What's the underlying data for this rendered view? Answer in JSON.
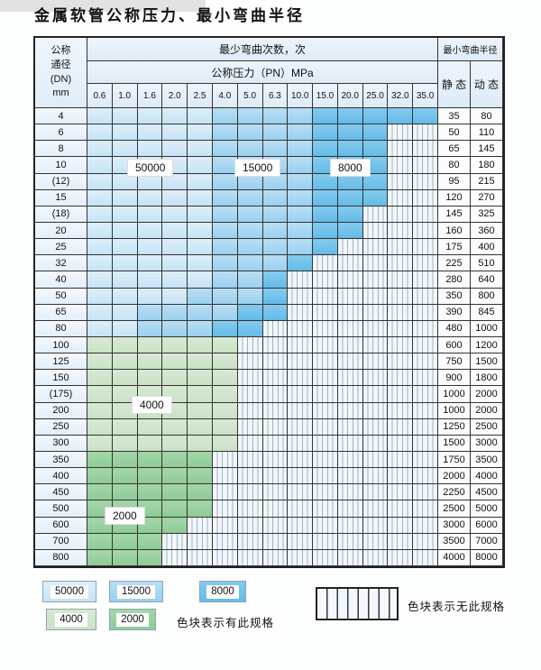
{
  "title": "金属软管公称压力、最小弯曲半径",
  "header": {
    "dn_lines": [
      "公称",
      "通径",
      "(DN)",
      "mm"
    ],
    "cycles_label": "最少弯曲次数，次",
    "pn_label": "公称压力（PN）MPa",
    "pressures": [
      "0.6",
      "1.0",
      "1.6",
      "2.0",
      "2.5",
      "4.0",
      "5.0",
      "6.3",
      "10.0",
      "15.0",
      "20.0",
      "25.0",
      "32.0",
      "35.0"
    ],
    "radius_label": "最小弯曲半径",
    "static_label": "静 态",
    "dynamic_label": "动 态"
  },
  "zone_codes": {
    "b1": "50000",
    "b2": "15000",
    "b3": "8000",
    "g1": "4000",
    "g2": "2000",
    "n": "无此规格"
  },
  "zone_labels": {
    "z50000": "50000",
    "z15000": "15000",
    "z8000": "8000",
    "z4000": "4000",
    "z2000": "2000"
  },
  "rows": [
    {
      "dn": "4",
      "spec": [
        "b1",
        "b1",
        "b1",
        "b1",
        "b1",
        "b2",
        "b2",
        "b2",
        "b2",
        "b3",
        "b3",
        "b3",
        "b3",
        "b3"
      ],
      "static": "35",
      "dynamic": "80"
    },
    {
      "dn": "6",
      "spec": [
        "b1",
        "b1",
        "b1",
        "b1",
        "b1",
        "b2",
        "b2",
        "b2",
        "b2",
        "b3",
        "b3",
        "b3",
        "n",
        "n"
      ],
      "static": "50",
      "dynamic": "110"
    },
    {
      "dn": "8",
      "spec": [
        "b1",
        "b1",
        "b1",
        "b1",
        "b1",
        "b2",
        "b2",
        "b2",
        "b2",
        "b3",
        "b3",
        "b3",
        "n",
        "n"
      ],
      "static": "65",
      "dynamic": "145"
    },
    {
      "dn": "10",
      "spec": [
        "b1",
        "b1",
        "b1",
        "b1",
        "b1",
        "b2",
        "b2",
        "b2",
        "b2",
        "b3",
        "b3",
        "b3",
        "n",
        "n"
      ],
      "static": "80",
      "dynamic": "180"
    },
    {
      "dn": "(12)",
      "spec": [
        "b1",
        "b1",
        "b1",
        "b1",
        "b1",
        "b2",
        "b2",
        "b2",
        "b2",
        "b3",
        "b3",
        "b3",
        "n",
        "n"
      ],
      "static": "95",
      "dynamic": "215"
    },
    {
      "dn": "15",
      "spec": [
        "b1",
        "b1",
        "b1",
        "b1",
        "b1",
        "b2",
        "b2",
        "b2",
        "b2",
        "b3",
        "b3",
        "b3",
        "n",
        "n"
      ],
      "static": "120",
      "dynamic": "270"
    },
    {
      "dn": "(18)",
      "spec": [
        "b1",
        "b1",
        "b1",
        "b1",
        "b1",
        "b2",
        "b2",
        "b2",
        "b2",
        "b3",
        "b3",
        "n",
        "n",
        "n"
      ],
      "static": "145",
      "dynamic": "325"
    },
    {
      "dn": "20",
      "spec": [
        "b1",
        "b1",
        "b1",
        "b1",
        "b1",
        "b2",
        "b2",
        "b2",
        "b2",
        "b3",
        "b3",
        "n",
        "n",
        "n"
      ],
      "static": "160",
      "dynamic": "360"
    },
    {
      "dn": "25",
      "spec": [
        "b1",
        "b1",
        "b1",
        "b1",
        "b1",
        "b2",
        "b2",
        "b2",
        "b2",
        "b3",
        "n",
        "n",
        "n",
        "n"
      ],
      "static": "175",
      "dynamic": "400"
    },
    {
      "dn": "32",
      "spec": [
        "b1",
        "b1",
        "b1",
        "b1",
        "b1",
        "b2",
        "b2",
        "b2",
        "b3",
        "n",
        "n",
        "n",
        "n",
        "n"
      ],
      "static": "225",
      "dynamic": "510"
    },
    {
      "dn": "40",
      "spec": [
        "b1",
        "b1",
        "b1",
        "b1",
        "b1",
        "b2",
        "b2",
        "b3",
        "n",
        "n",
        "n",
        "n",
        "n",
        "n"
      ],
      "static": "280",
      "dynamic": "640"
    },
    {
      "dn": "50",
      "spec": [
        "b1",
        "b1",
        "b1",
        "b1",
        "b2",
        "b2",
        "b2",
        "b3",
        "n",
        "n",
        "n",
        "n",
        "n",
        "n"
      ],
      "static": "350",
      "dynamic": "800"
    },
    {
      "dn": "65",
      "spec": [
        "b1",
        "b1",
        "b2",
        "b2",
        "b2",
        "b2",
        "b3",
        "b3",
        "n",
        "n",
        "n",
        "n",
        "n",
        "n"
      ],
      "static": "390",
      "dynamic": "845"
    },
    {
      "dn": "80",
      "spec": [
        "b1",
        "b1",
        "b2",
        "b2",
        "b2",
        "b3",
        "b3",
        "n",
        "n",
        "n",
        "n",
        "n",
        "n",
        "n"
      ],
      "static": "480",
      "dynamic": "1000"
    },
    {
      "dn": "100",
      "spec": [
        "g1",
        "g1",
        "g1",
        "g1",
        "g1",
        "g1",
        "n",
        "n",
        "n",
        "n",
        "n",
        "n",
        "n",
        "n"
      ],
      "static": "600",
      "dynamic": "1200"
    },
    {
      "dn": "125",
      "spec": [
        "g1",
        "g1",
        "g1",
        "g1",
        "g1",
        "g1",
        "n",
        "n",
        "n",
        "n",
        "n",
        "n",
        "n",
        "n"
      ],
      "static": "750",
      "dynamic": "1500"
    },
    {
      "dn": "150",
      "spec": [
        "g1",
        "g1",
        "g1",
        "g1",
        "g1",
        "g1",
        "n",
        "n",
        "n",
        "n",
        "n",
        "n",
        "n",
        "n"
      ],
      "static": "900",
      "dynamic": "1800"
    },
    {
      "dn": "(175)",
      "spec": [
        "g1",
        "g1",
        "g1",
        "g1",
        "g1",
        "g1",
        "n",
        "n",
        "n",
        "n",
        "n",
        "n",
        "n",
        "n"
      ],
      "static": "1000",
      "dynamic": "2000"
    },
    {
      "dn": "200",
      "spec": [
        "g1",
        "g1",
        "g1",
        "g1",
        "g1",
        "g1",
        "n",
        "n",
        "n",
        "n",
        "n",
        "n",
        "n",
        "n"
      ],
      "static": "1000",
      "dynamic": "2000"
    },
    {
      "dn": "250",
      "spec": [
        "g1",
        "g1",
        "g1",
        "g1",
        "g1",
        "g1",
        "n",
        "n",
        "n",
        "n",
        "n",
        "n",
        "n",
        "n"
      ],
      "static": "1250",
      "dynamic": "2500"
    },
    {
      "dn": "300",
      "spec": [
        "g1",
        "g1",
        "g1",
        "g1",
        "g1",
        "g1",
        "n",
        "n",
        "n",
        "n",
        "n",
        "n",
        "n",
        "n"
      ],
      "static": "1500",
      "dynamic": "3000"
    },
    {
      "dn": "350",
      "spec": [
        "g2",
        "g2",
        "g2",
        "g2",
        "g2",
        "n",
        "n",
        "n",
        "n",
        "n",
        "n",
        "n",
        "n",
        "n"
      ],
      "static": "1750",
      "dynamic": "3500"
    },
    {
      "dn": "400",
      "spec": [
        "g2",
        "g2",
        "g2",
        "g2",
        "g2",
        "n",
        "n",
        "n",
        "n",
        "n",
        "n",
        "n",
        "n",
        "n"
      ],
      "static": "2000",
      "dynamic": "4000"
    },
    {
      "dn": "450",
      "spec": [
        "g2",
        "g2",
        "g2",
        "g2",
        "g2",
        "n",
        "n",
        "n",
        "n",
        "n",
        "n",
        "n",
        "n",
        "n"
      ],
      "static": "2250",
      "dynamic": "4500"
    },
    {
      "dn": "500",
      "spec": [
        "g2",
        "g2",
        "g2",
        "g2",
        "g2",
        "n",
        "n",
        "n",
        "n",
        "n",
        "n",
        "n",
        "n",
        "n"
      ],
      "static": "2500",
      "dynamic": "5000"
    },
    {
      "dn": "600",
      "spec": [
        "g2",
        "g2",
        "g2",
        "g2",
        "n",
        "n",
        "n",
        "n",
        "n",
        "n",
        "n",
        "n",
        "n",
        "n"
      ],
      "static": "3000",
      "dynamic": "6000"
    },
    {
      "dn": "700",
      "spec": [
        "g2",
        "g2",
        "g2",
        "n",
        "n",
        "n",
        "n",
        "n",
        "n",
        "n",
        "n",
        "n",
        "n",
        "n"
      ],
      "static": "3500",
      "dynamic": "7000"
    },
    {
      "dn": "800",
      "spec": [
        "g2",
        "g2",
        "g2",
        "n",
        "n",
        "n",
        "n",
        "n",
        "n",
        "n",
        "n",
        "n",
        "n",
        "n"
      ],
      "static": "4000",
      "dynamic": "8000"
    }
  ],
  "legend": {
    "has_spec_text": "色块表示有此规格",
    "no_spec_text": "色块表示无此规格"
  },
  "colors": {
    "blue_50000": "#cfe7f7",
    "blue_15000": "#a8d7f1",
    "blue_8000": "#6fc2ea",
    "green_4000": "#d1e5cc",
    "green_2000": "#9ad1a0",
    "hatch_bg": "#f2f7fb",
    "grid_line": "#333333"
  }
}
